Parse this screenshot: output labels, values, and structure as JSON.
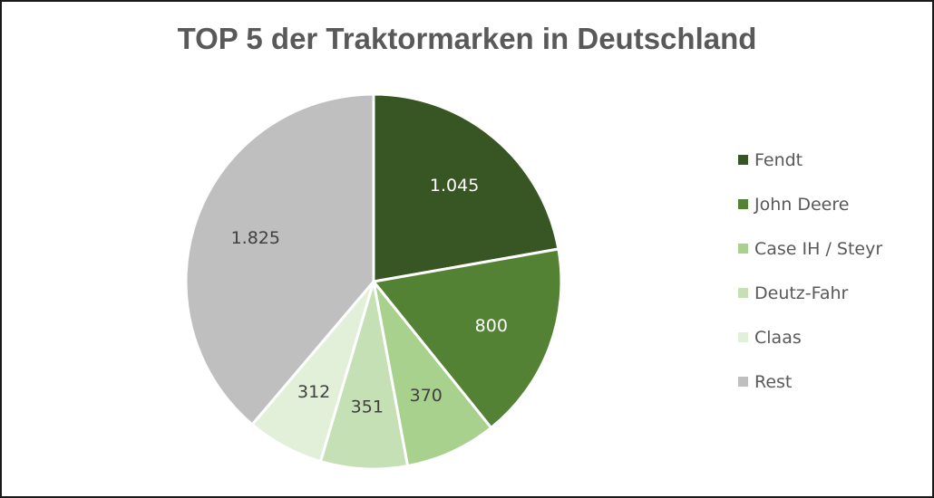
{
  "chart_data": {
    "type": "pie",
    "title": "TOP 5 der Traktormarken in Deutschland",
    "legend_position": "right",
    "start_angle_deg": 0,
    "direction": "clockwise",
    "slices": [
      {
        "label": "Fendt",
        "value": 1045,
        "display": "1.045",
        "color": "#375623",
        "label_color": "#ffffff"
      },
      {
        "label": "John Deere",
        "value": 800,
        "display": "800",
        "color": "#548235",
        "label_color": "#ffffff"
      },
      {
        "label": "Case IH / Steyr",
        "value": 370,
        "display": "370",
        "color": "#a9d18e",
        "label_color": "#404040"
      },
      {
        "label": "Deutz-Fahr",
        "value": 351,
        "display": "351",
        "color": "#c5e0b4",
        "label_color": "#404040"
      },
      {
        "label": "Claas",
        "value": 312,
        "display": "312",
        "color": "#e2f0d9",
        "label_color": "#404040"
      },
      {
        "label": "Rest",
        "value": 1825,
        "display": "1.825",
        "color": "#bfbfbf",
        "label_color": "#404040"
      }
    ]
  }
}
